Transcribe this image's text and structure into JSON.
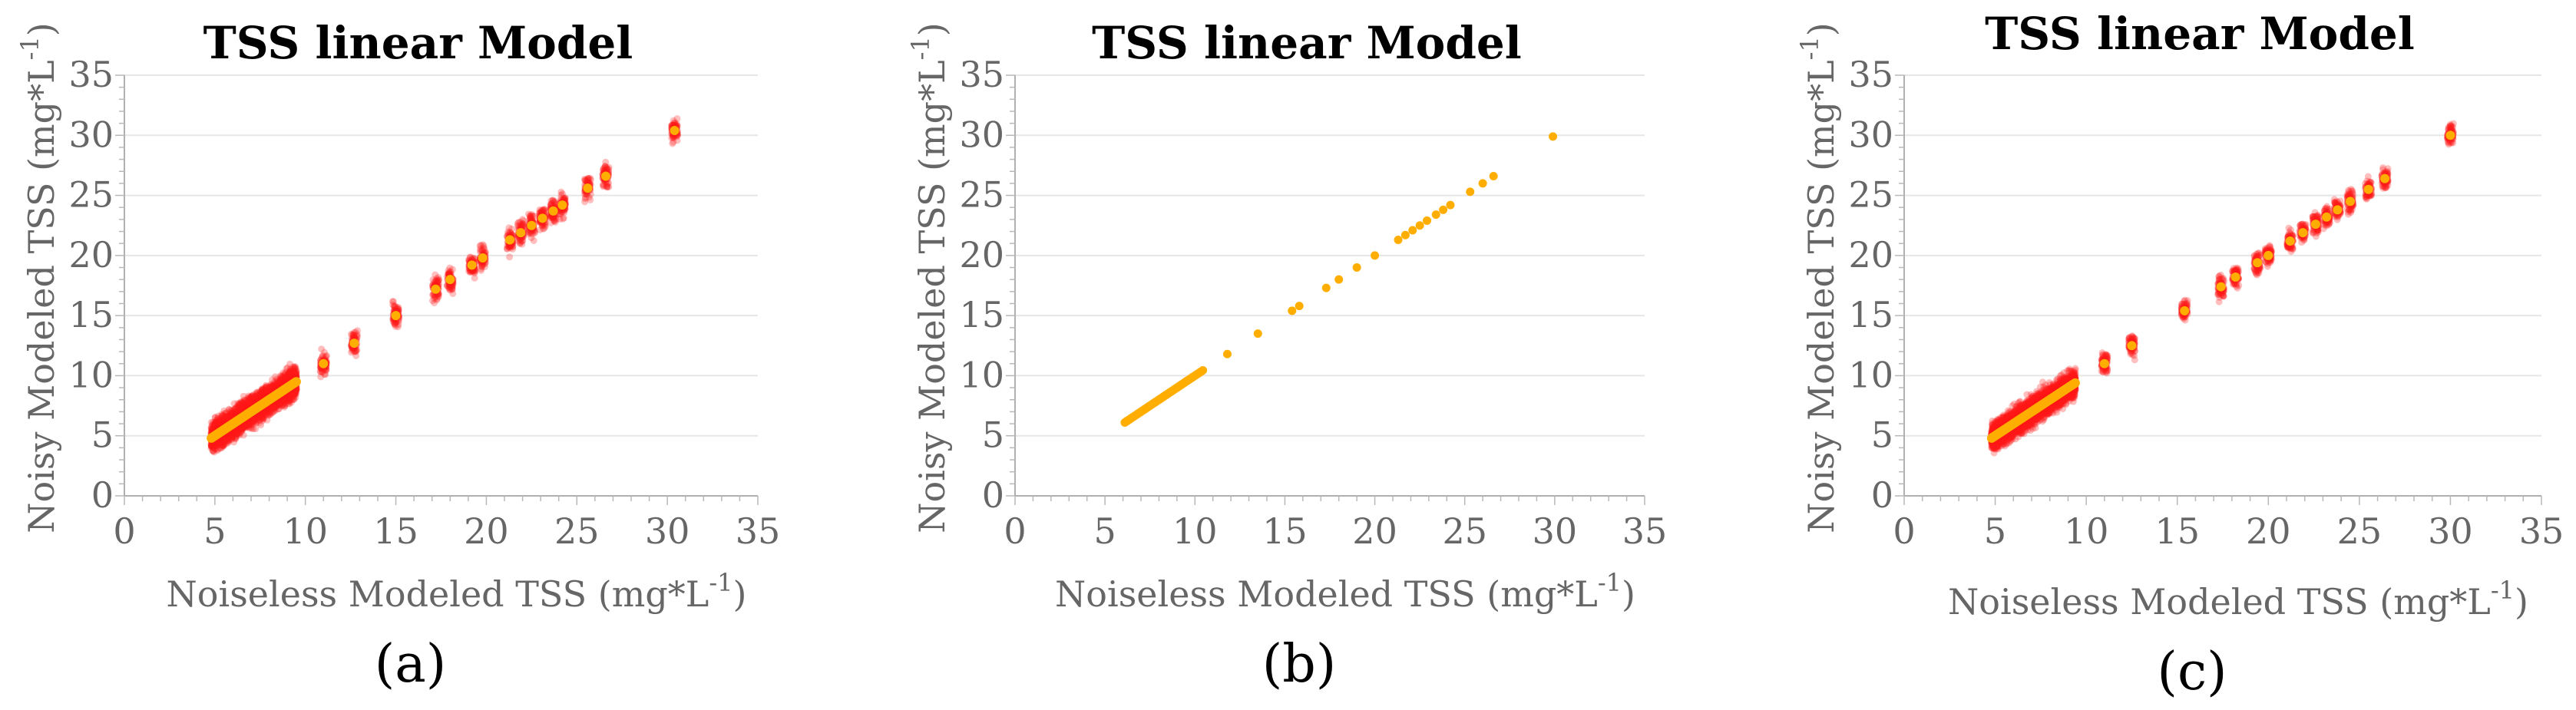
{
  "colors": {
    "noisy": "#ff1a1a",
    "clean": "#ffae00",
    "axis_text": "#666666",
    "grid": "#e6e6e6"
  },
  "chart_data": [
    {
      "panel": "a",
      "type": "scatter",
      "title": "TSS linear Model",
      "xlabel": "Noiseless Modeled TSS (mg*L",
      "ylabel": "Noisy Modeled TSS (mg*L",
      "unit_sup": "-1",
      "unit_close": ")",
      "subfig_label": "(a)",
      "xlim": [
        0,
        35
      ],
      "ylim": [
        0,
        35
      ],
      "xticks": [
        0,
        5,
        10,
        15,
        20,
        25,
        30,
        35
      ],
      "yticks": [
        0,
        5,
        10,
        15,
        20,
        25,
        30,
        35
      ],
      "noise_band": 2.5,
      "series": [
        {
          "name": "noisy",
          "style": "band",
          "continuous_range": [
            4.8,
            9.5
          ],
          "clusters": [
            11,
            12.7,
            15,
            17.2,
            18,
            19.2,
            19.8,
            21.3,
            21.9,
            22.5,
            23.1,
            23.7,
            24.2,
            25.6,
            26.6,
            30.4
          ]
        },
        {
          "name": "noiseless",
          "style": "line",
          "continuous_range": [
            4.8,
            9.5
          ],
          "clusters": [
            11,
            12.7,
            15,
            17.2,
            18,
            19.2,
            19.8,
            21.3,
            21.9,
            22.5,
            23.1,
            23.7,
            24.2,
            25.6,
            26.6,
            30.4
          ]
        }
      ]
    },
    {
      "panel": "b",
      "type": "scatter",
      "title": "TSS linear Model",
      "xlabel": "Noiseless Modeled TSS (mg*L",
      "ylabel": "Noisy Modeled TSS (mg*L",
      "unit_sup": "-1",
      "unit_close": ")",
      "subfig_label": "(b)",
      "xlim": [
        0,
        35
      ],
      "ylim": [
        0,
        35
      ],
      "xticks": [
        0,
        5,
        10,
        15,
        20,
        25,
        30,
        35
      ],
      "yticks": [
        0,
        5,
        10,
        15,
        20,
        25,
        30,
        35
      ],
      "noise_band": 0,
      "series": [
        {
          "name": "noiseless",
          "style": "points",
          "continuous_range": [
            6.1,
            10.5
          ],
          "clusters": [
            11.8,
            13.5,
            15.4,
            15.8,
            17.3,
            18.0,
            19.0,
            20.0,
            21.3,
            21.7,
            22.1,
            22.5,
            22.9,
            23.4,
            23.8,
            24.2,
            25.3,
            26.0,
            26.6,
            29.9
          ]
        }
      ]
    },
    {
      "panel": "c",
      "type": "scatter",
      "title": "TSS linear Model",
      "xlabel": "Noiseless Modeled TSS (mg*L",
      "ylabel": "Noisy Modeled TSS (mg*L",
      "unit_sup": "-1",
      "unit_close": ")",
      "subfig_label": "(c)",
      "xlim": [
        0,
        35
      ],
      "ylim": [
        0,
        35
      ],
      "xticks": [
        0,
        5,
        10,
        15,
        20,
        25,
        30,
        35
      ],
      "yticks": [
        0,
        5,
        10,
        15,
        20,
        25,
        30,
        35
      ],
      "noise_band": 2.3,
      "series": [
        {
          "name": "noisy",
          "style": "band",
          "continuous_range": [
            4.8,
            9.4
          ],
          "clusters": [
            11,
            12.5,
            15.4,
            17.4,
            18.2,
            19.4,
            20,
            21.2,
            21.9,
            22.6,
            23.2,
            23.8,
            24.5,
            25.5,
            26.4,
            30
          ]
        },
        {
          "name": "noiseless",
          "style": "line",
          "continuous_range": [
            4.8,
            9.4
          ],
          "clusters": [
            11,
            12.5,
            15.4,
            17.4,
            18.2,
            19.4,
            20,
            21.2,
            21.9,
            22.6,
            23.2,
            23.8,
            24.5,
            25.5,
            26.4,
            30
          ]
        }
      ]
    }
  ]
}
